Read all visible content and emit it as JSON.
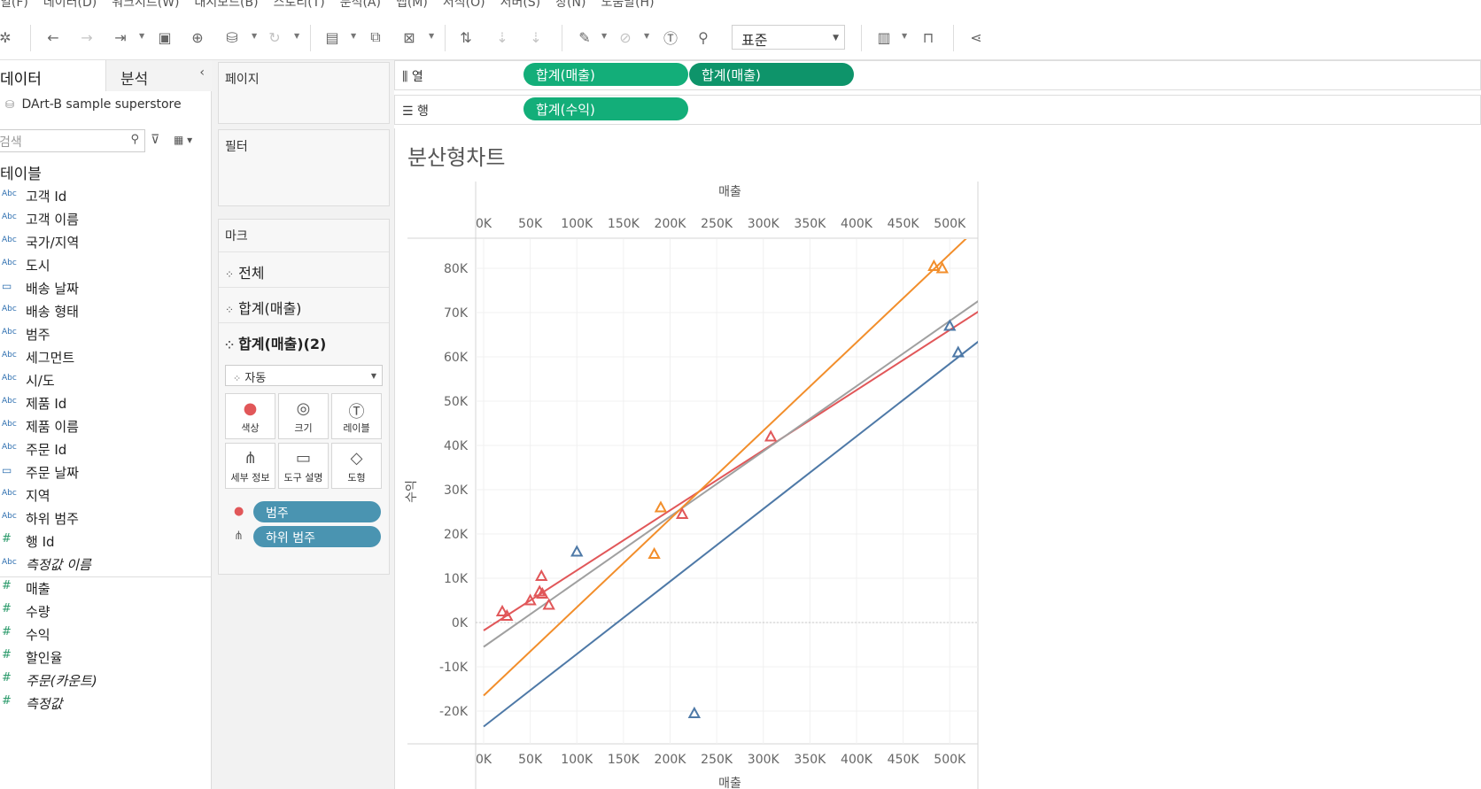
{
  "menu": [
    "일(F)",
    "데이터(D)",
    "워크시트(W)",
    "대시보드(B)",
    "스토리(T)",
    "분석(A)",
    "맵(M)",
    "서식(O)",
    "서버(S)",
    "창(N)",
    "도움말(H)"
  ],
  "toolbar": {
    "fit_select": "표준"
  },
  "data_pane": {
    "tab_data": "데이터",
    "tab_analysis": "분석",
    "datasource": "DArt-B sample superstore",
    "search_placeholder": "검색",
    "tables_heading": "테이블",
    "dimensions": [
      {
        "type": "Abc",
        "name": "고객 Id"
      },
      {
        "type": "Abc",
        "name": "고객 이름"
      },
      {
        "type": "Abc",
        "name": "국가/지역"
      },
      {
        "type": "Abc",
        "name": "도시"
      },
      {
        "type": "date",
        "name": "배송 날짜"
      },
      {
        "type": "Abc",
        "name": "배송 형태"
      },
      {
        "type": "Abc",
        "name": "범주"
      },
      {
        "type": "Abc",
        "name": "세그먼트"
      },
      {
        "type": "Abc",
        "name": "시/도"
      },
      {
        "type": "Abc",
        "name": "제품 Id"
      },
      {
        "type": "Abc",
        "name": "제품 이름"
      },
      {
        "type": "Abc",
        "name": "주문 Id"
      },
      {
        "type": "date",
        "name": "주문 날짜"
      },
      {
        "type": "Abc",
        "name": "지역"
      },
      {
        "type": "Abc",
        "name": "하위 범주"
      },
      {
        "type": "#",
        "name": "행 Id"
      },
      {
        "type": "Abc",
        "name": "측정값 이름",
        "italic": true
      }
    ],
    "measures": [
      {
        "type": "#",
        "name": "매출"
      },
      {
        "type": "#",
        "name": "수량"
      },
      {
        "type": "#",
        "name": "수익"
      },
      {
        "type": "#",
        "name": "할인율"
      },
      {
        "type": "#",
        "name": "주문(카운트)",
        "italic": true
      },
      {
        "type": "#",
        "name": "측정값",
        "italic": true
      }
    ]
  },
  "cards": {
    "pages_title": "페이지",
    "filters_title": "필터",
    "marks_title": "마크",
    "marks_rows": [
      "전체",
      "합계(매출)",
      "합계(매출)(2)"
    ],
    "mark_type": "자동",
    "buttons": [
      "색상",
      "크기",
      "레이블",
      "세부 정보",
      "도구 설명",
      "도형"
    ],
    "color_pill": "범주",
    "detail_pill": "하위 범주"
  },
  "shelves": {
    "columns_label": "열",
    "rows_label": "행",
    "column_pills": [
      "합계(매출)",
      "합계(매출)"
    ],
    "row_pills": [
      "합계(수익)"
    ]
  },
  "viz": {
    "title": "분산형차트"
  },
  "chart_data": {
    "type": "scatter",
    "title": "분산형차트",
    "xlabel": "매출",
    "ylabel": "수익",
    "xlim": [
      0,
      520000
    ],
    "ylim": [
      -26000,
      87000
    ],
    "x_ticks": [
      "0K",
      "50K",
      "100K",
      "150K",
      "200K",
      "250K",
      "300K",
      "350K",
      "400K",
      "450K",
      "500K"
    ],
    "y_ticks": [
      "80K",
      "70K",
      "60K",
      "50K",
      "40K",
      "30K",
      "20K",
      "10K",
      "0K",
      "-10K",
      "-20K"
    ],
    "marker": "triangle",
    "grid": true,
    "colors": {
      "red": "#e15759",
      "orange": "#f28e2b",
      "blue": "#4e79a7",
      "gray": "#a0a0a0"
    },
    "series": [
      {
        "color": "#e15759",
        "points": [
          [
            20000,
            2500
          ],
          [
            25000,
            1500
          ],
          [
            50000,
            5000
          ],
          [
            60000,
            7000
          ],
          [
            62000,
            10500
          ],
          [
            63000,
            6500
          ],
          [
            70000,
            4000
          ],
          [
            213000,
            24500
          ],
          [
            308000,
            42000
          ]
        ]
      },
      {
        "color": "#f28e2b",
        "points": [
          [
            183000,
            15500
          ],
          [
            190000,
            26000
          ],
          [
            483000,
            80500
          ],
          [
            492000,
            80000
          ]
        ]
      },
      {
        "color": "#4e79a7",
        "points": [
          [
            100000,
            16000
          ],
          [
            226000,
            -20500
          ],
          [
            500000,
            67000
          ],
          [
            509000,
            61000
          ]
        ]
      }
    ],
    "trend_lines": [
      {
        "color": "#e15759",
        "from": [
          0,
          -1800
        ],
        "to": [
          540000,
          71500
        ]
      },
      {
        "color": "#a0a0a0",
        "from": [
          0,
          -5500
        ],
        "to": [
          540000,
          74000
        ]
      },
      {
        "color": "#f28e2b",
        "from": [
          0,
          -16500
        ],
        "to": [
          519000,
          87000
        ]
      },
      {
        "color": "#4e79a7",
        "from": [
          0,
          -23500
        ],
        "to": [
          540000,
          65000
        ]
      }
    ]
  }
}
